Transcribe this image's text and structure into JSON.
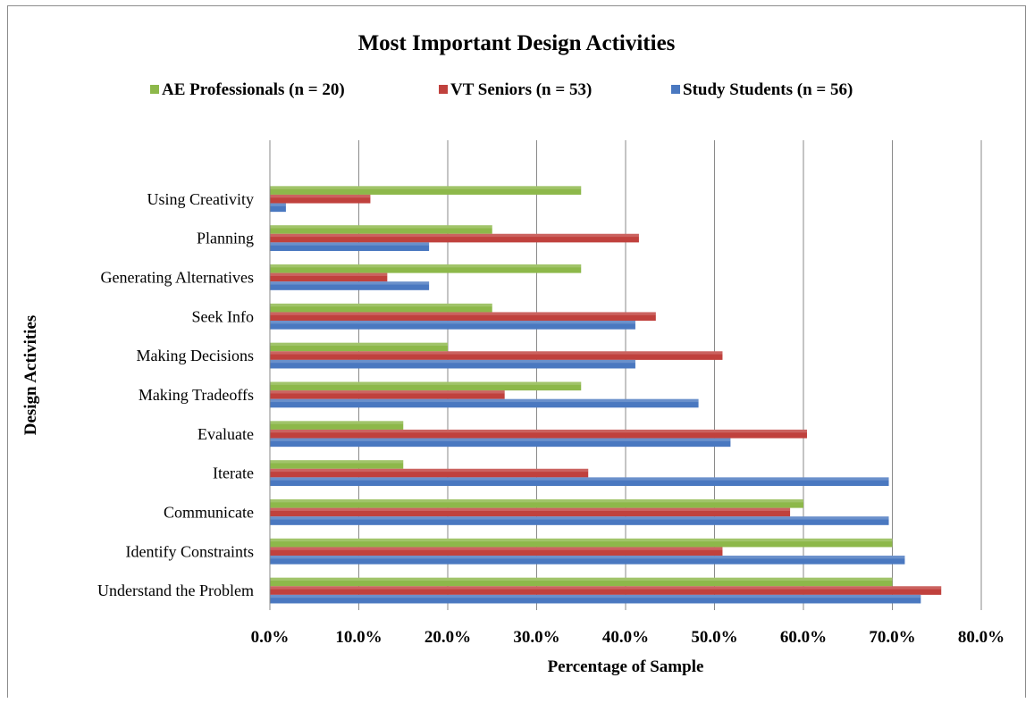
{
  "chart_data": {
    "type": "bar",
    "orientation": "horizontal",
    "title": "Most Important Design Activities",
    "xlabel": "Percentage of Sample",
    "ylabel": "Design Activities",
    "xlim": [
      0,
      80
    ],
    "x_ticks": [
      "0.0%",
      "10.0%",
      "20.0%",
      "30.0%",
      "40.0%",
      "50.0%",
      "60.0%",
      "70.0%",
      "80.0%"
    ],
    "grid": "vertical major gridlines",
    "legend_position": "top",
    "categories": [
      "Using Creativity",
      "Planning",
      "Generating Alternatives",
      "Seek Info",
      "Making Decisions",
      "Making Tradeoffs",
      "Evaluate",
      "Iterate",
      "Communicate",
      "Identify Constraints",
      "Understand the Problem"
    ],
    "series": [
      {
        "name": "AE Professionals (n = 20)",
        "color": "#8DB84A",
        "values": [
          35,
          25,
          35,
          25,
          20,
          35,
          15,
          15,
          60,
          70,
          70
        ]
      },
      {
        "name": "VT Seniors (n = 53)",
        "color": "#C0413D",
        "values": [
          11.3,
          41.5,
          13.2,
          43.4,
          50.9,
          26.4,
          60.4,
          35.8,
          58.5,
          50.9,
          75.5
        ]
      },
      {
        "name": "Study Students (n = 56)",
        "color": "#4A78C0",
        "values": [
          1.8,
          17.9,
          17.9,
          41.1,
          41.1,
          48.2,
          51.8,
          69.6,
          69.6,
          71.4,
          73.2
        ]
      }
    ]
  }
}
